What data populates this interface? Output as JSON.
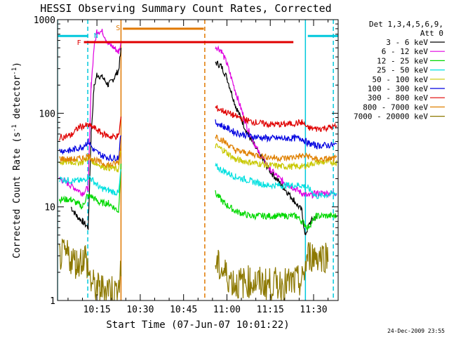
{
  "chart_data": {
    "type": "line",
    "title": "HESSI Observing Summary Count Rates, Corrected",
    "xlabel": "Start Time (07-Jun-07 10:01:22)",
    "ylabel_parts": [
      "Corrected Count Rate (s",
      "-1",
      " detector",
      "-1",
      ")"
    ],
    "x_ticks": [
      "10:15",
      "10:30",
      "10:45",
      "11:00",
      "11:15",
      "11:30"
    ],
    "y_ticks": [
      "1",
      "10",
      "100",
      "1000"
    ],
    "y_scale": "log",
    "ylim": [
      1,
      1000
    ],
    "xlim": [
      "10:01:22",
      "11:38:30"
    ],
    "legend_title": [
      "Det 1,3,4,5,6,9,",
      "Att 0"
    ],
    "legend_placement": "right",
    "timestamp": "24-Dec-2009 23:55",
    "grid": false,
    "annotations": [
      {
        "label": "N",
        "color": "#00c8dc",
        "segments": [
          [
            "10:01:22",
            "10:12:00"
          ],
          [
            "11:28:00",
            "11:38:30"
          ]
        ],
        "y": 670
      },
      {
        "label": "S",
        "color": "#e07800",
        "segments": [
          [
            "10:24:00",
            "10:52:00"
          ]
        ],
        "y": 800
      },
      {
        "label": "F",
        "color": "#e00000",
        "segments": [
          [
            "10:10:30",
            "11:23:00"
          ]
        ],
        "y": 575
      }
    ],
    "vertical_markers": [
      {
        "time": "10:01:22",
        "color": "#00c8dc",
        "style": "solid"
      },
      {
        "time": "10:11:50",
        "color": "#00c8dc",
        "style": "dashed"
      },
      {
        "time": "10:23:20",
        "color": "#e07800",
        "style": "solid"
      },
      {
        "time": "10:52:20",
        "color": "#e07800",
        "style": "dashed"
      },
      {
        "time": "11:27:10",
        "color": "#00c8dc",
        "style": "solid"
      },
      {
        "time": "11:36:50",
        "color": "#00c8dc",
        "style": "dashed"
      }
    ],
    "gaps": [
      [
        "10:23:30",
        "10:55:00"
      ]
    ],
    "series": [
      {
        "name": "3 - 6 keV",
        "color": "#000000",
        "points": [
          [
            "10:06:00",
            10
          ],
          [
            "10:08:00",
            8
          ],
          [
            "10:10:00",
            7
          ],
          [
            "10:12:00",
            6
          ],
          [
            "10:13:00",
            60
          ],
          [
            "10:14:00",
            190
          ],
          [
            "10:15:00",
            260
          ],
          [
            "10:17:00",
            240
          ],
          [
            "10:19:00",
            200
          ],
          [
            "10:21:00",
            240
          ],
          [
            "10:22:30",
            290
          ],
          [
            "10:23:20",
            470
          ],
          [
            "10:56:00",
            350
          ],
          [
            "10:58:00",
            320
          ],
          [
            "11:00:00",
            240
          ],
          [
            "11:03:00",
            120
          ],
          [
            "11:07:00",
            62
          ],
          [
            "11:11:00",
            37
          ],
          [
            "11:15:00",
            24
          ],
          [
            "11:19:00",
            17
          ],
          [
            "11:23:00",
            12
          ],
          [
            "11:26:00",
            9
          ],
          [
            "11:27:00",
            5
          ],
          [
            "11:29:00",
            7
          ],
          [
            "11:31:00",
            8
          ]
        ]
      },
      {
        "name": "6 - 12 keV",
        "color": "#e000e0",
        "points": [
          [
            "10:02:00",
            20
          ],
          [
            "10:06:00",
            17
          ],
          [
            "10:10:00",
            14
          ],
          [
            "10:12:00",
            16
          ],
          [
            "10:13:00",
            200
          ],
          [
            "10:14:00",
            500
          ],
          [
            "10:15:00",
            760
          ],
          [
            "10:17:00",
            740
          ],
          [
            "10:19:00",
            550
          ],
          [
            "10:21:00",
            500
          ],
          [
            "10:22:30",
            450
          ],
          [
            "10:23:20",
            560
          ],
          [
            "10:56:00",
            520
          ],
          [
            "10:58:00",
            470
          ],
          [
            "11:00:00",
            340
          ],
          [
            "11:03:00",
            170
          ],
          [
            "11:07:00",
            70
          ],
          [
            "11:11:00",
            38
          ],
          [
            "11:15:00",
            25
          ],
          [
            "11:19:00",
            19
          ],
          [
            "11:23:00",
            16
          ],
          [
            "11:26:00",
            14
          ],
          [
            "11:28:00",
            13
          ],
          [
            "11:31:00",
            14
          ],
          [
            "11:38:00",
            14
          ]
        ]
      },
      {
        "name": "12 - 25 keV",
        "color": "#00d800",
        "points": [
          [
            "10:02:00",
            12
          ],
          [
            "10:06:00",
            12
          ],
          [
            "10:10:00",
            10
          ],
          [
            "10:11:30",
            13
          ],
          [
            "10:13:00",
            13
          ],
          [
            "10:16:00",
            11
          ],
          [
            "10:19:00",
            11
          ],
          [
            "10:22:30",
            9
          ],
          [
            "10:23:20",
            30
          ],
          [
            "10:56:00",
            14
          ],
          [
            "10:59:00",
            11
          ],
          [
            "11:03:00",
            9
          ],
          [
            "11:08:00",
            8
          ],
          [
            "11:14:00",
            8
          ],
          [
            "11:20:00",
            8
          ],
          [
            "11:24:00",
            8
          ],
          [
            "11:26:00",
            7
          ],
          [
            "11:28:00",
            6
          ],
          [
            "11:31:00",
            8
          ],
          [
            "11:38:00",
            8
          ]
        ]
      },
      {
        "name": "25 - 50 keV",
        "color": "#00e0e0",
        "points": [
          [
            "10:02:00",
            20
          ],
          [
            "10:06:00",
            19
          ],
          [
            "10:10:00",
            19
          ],
          [
            "10:12:00",
            21
          ],
          [
            "10:13:00",
            20
          ],
          [
            "10:16:00",
            16
          ],
          [
            "10:19:00",
            15
          ],
          [
            "10:22:30",
            14
          ],
          [
            "10:23:20",
            25
          ],
          [
            "10:56:00",
            27
          ],
          [
            "10:59:00",
            24
          ],
          [
            "11:03:00",
            21
          ],
          [
            "11:08:00",
            19
          ],
          [
            "11:14:00",
            17
          ],
          [
            "11:20:00",
            17
          ],
          [
            "11:26:00",
            17
          ],
          [
            "11:28:00",
            16
          ],
          [
            "11:31:00",
            13
          ],
          [
            "11:38:00",
            14
          ]
        ]
      },
      {
        "name": "50 - 100 keV",
        "color": "#c8c800",
        "points": [
          [
            "10:02:00",
            30
          ],
          [
            "10:06:00",
            30
          ],
          [
            "10:10:00",
            30
          ],
          [
            "10:12:00",
            34
          ],
          [
            "10:14:00",
            30
          ],
          [
            "10:17:00",
            27
          ],
          [
            "10:20:00",
            26
          ],
          [
            "10:22:30",
            25
          ],
          [
            "10:23:20",
            40
          ],
          [
            "10:56:00",
            45
          ],
          [
            "10:59:00",
            40
          ],
          [
            "11:03:00",
            32
          ],
          [
            "11:08:00",
            30
          ],
          [
            "11:14:00",
            28
          ],
          [
            "11:20:00",
            27
          ],
          [
            "11:26:00",
            27
          ],
          [
            "11:28:00",
            28
          ],
          [
            "11:31:00",
            30
          ],
          [
            "11:38:00",
            30
          ]
        ]
      },
      {
        "name": "100 - 300 keV",
        "color": "#0000e0",
        "points": [
          [
            "10:02:00",
            40
          ],
          [
            "10:06:00",
            40
          ],
          [
            "10:10:00",
            44
          ],
          [
            "10:12:00",
            50
          ],
          [
            "10:14:00",
            40
          ],
          [
            "10:17:00",
            35
          ],
          [
            "10:20:00",
            33
          ],
          [
            "10:22:30",
            34
          ],
          [
            "10:23:20",
            60
          ],
          [
            "10:56:00",
            80
          ],
          [
            "10:59:00",
            72
          ],
          [
            "11:03:00",
            62
          ],
          [
            "11:08:00",
            57
          ],
          [
            "11:14:00",
            54
          ],
          [
            "11:20:00",
            54
          ],
          [
            "11:26:00",
            54
          ],
          [
            "11:28:00",
            48
          ],
          [
            "11:31:00",
            45
          ],
          [
            "11:38:00",
            46
          ]
        ]
      },
      {
        "name": "300 - 800 keV",
        "color": "#e00000",
        "points": [
          [
            "10:02:00",
            55
          ],
          [
            "10:06:00",
            58
          ],
          [
            "10:09:00",
            72
          ],
          [
            "10:12:00",
            74
          ],
          [
            "10:14:00",
            70
          ],
          [
            "10:17:00",
            60
          ],
          [
            "10:20:00",
            56
          ],
          [
            "10:22:30",
            57
          ],
          [
            "10:23:20",
            90
          ],
          [
            "10:56:00",
            115
          ],
          [
            "10:59:00",
            105
          ],
          [
            "11:03:00",
            93
          ],
          [
            "11:08:00",
            82
          ],
          [
            "11:14:00",
            76
          ],
          [
            "11:20:00",
            76
          ],
          [
            "11:26:00",
            80
          ],
          [
            "11:28:00",
            70
          ],
          [
            "11:31:00",
            68
          ],
          [
            "11:38:00",
            72
          ]
        ]
      },
      {
        "name": "800 - 7000 keV",
        "color": "#e08000",
        "points": [
          [
            "10:02:00",
            33
          ],
          [
            "10:06:00",
            32
          ],
          [
            "10:10:00",
            33
          ],
          [
            "10:12:00",
            35
          ],
          [
            "10:14:00",
            32
          ],
          [
            "10:17:00",
            29
          ],
          [
            "10:20:00",
            28
          ],
          [
            "10:22:30",
            30
          ],
          [
            "10:23:20",
            50
          ],
          [
            "10:56:00",
            58
          ],
          [
            "10:59:00",
            50
          ],
          [
            "11:03:00",
            40
          ],
          [
            "11:08:00",
            37
          ],
          [
            "11:14:00",
            34
          ],
          [
            "11:20:00",
            33
          ],
          [
            "11:26:00",
            35
          ],
          [
            "11:28:00",
            35
          ],
          [
            "11:31:00",
            32
          ],
          [
            "11:38:00",
            33
          ]
        ]
      },
      {
        "name": "7000 - 20000 keV",
        "color": "#8c7800",
        "points": [
          [
            "10:02:00",
            3
          ],
          [
            "10:05:00",
            3
          ],
          [
            "10:08:00",
            2.5
          ],
          [
            "10:11:00",
            3
          ],
          [
            "10:13:00",
            1.5
          ],
          [
            "10:16:00",
            1.3
          ],
          [
            "10:19:00",
            1.4
          ],
          [
            "10:22:00",
            1.2
          ],
          [
            "10:23:20",
            2
          ],
          [
            "10:56:00",
            2.5
          ],
          [
            "10:59:00",
            2
          ],
          [
            "11:03:00",
            1.5
          ],
          [
            "11:08:00",
            1.6
          ],
          [
            "11:14:00",
            1.5
          ],
          [
            "11:20:00",
            1.5
          ],
          [
            "11:26:00",
            1.6
          ],
          [
            "11:28:00",
            3
          ],
          [
            "11:31:00",
            3
          ],
          [
            "11:35:00",
            3
          ]
        ]
      }
    ]
  }
}
